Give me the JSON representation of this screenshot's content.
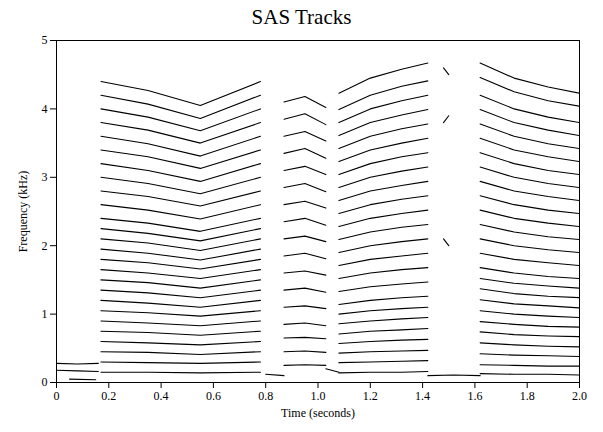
{
  "chart_data": {
    "type": "line",
    "title": "SAS Tracks",
    "x_label": "Time (seconds)",
    "y_label": "Frequency (kHz)",
    "color": "#000000",
    "grid": false,
    "xlim": [
      0,
      2
    ],
    "xticks": [
      0,
      0.2,
      0.4,
      0.6,
      0.8,
      {
        "value": 1,
        "label": "1.0"
      },
      1.2,
      1.4,
      1.6,
      1.8,
      {
        "value": 2,
        "label": "2.0"
      }
    ],
    "ylim": [
      0,
      5
    ],
    "yticks": [
      0,
      1,
      2,
      3,
      4,
      5
    ],
    "series": [
      {
        "x": [
          0,
          0.08,
          0.16
        ],
        "values": [
          0.28,
          0.27,
          0.28
        ]
      },
      {
        "x": [
          0,
          0.08,
          0.16
        ],
        "values": [
          0.18,
          0.17,
          0.16
        ]
      },
      {
        "x": [
          0.05,
          0.15
        ],
        "values": [
          0.05,
          0.04
        ]
      },
      {
        "x": [
          0.8,
          0.87
        ],
        "values": [
          0.12,
          0.1
        ]
      },
      {
        "x": [
          1.03,
          1.08
        ],
        "values": [
          0.2,
          0.15
        ]
      },
      {
        "x": [
          1.42,
          1.52,
          1.62
        ],
        "values": [
          0.1,
          0.11,
          0.1
        ]
      },
      {
        "x": [
          1.48,
          1.5
        ],
        "values": [
          4.6,
          4.5
        ]
      },
      {
        "x": [
          1.48,
          1.5
        ],
        "values": [
          3.8,
          3.9
        ]
      },
      {
        "x": [
          1.48,
          1.5
        ],
        "values": [
          2.1,
          2.0
        ]
      },
      {
        "x": [
          0.17,
          0.35,
          0.55,
          0.78
        ],
        "values": [
          0.15,
          0.15,
          0.14,
          0.15
        ]
      },
      {
        "x": [
          0.17,
          0.35,
          0.55,
          0.78
        ],
        "values": [
          0.3,
          0.29,
          0.28,
          0.3
        ]
      },
      {
        "x": [
          0.17,
          0.35,
          0.55,
          0.78
        ],
        "values": [
          0.45,
          0.44,
          0.41,
          0.45
        ]
      },
      {
        "x": [
          0.17,
          0.35,
          0.55,
          0.78
        ],
        "values": [
          0.6,
          0.58,
          0.55,
          0.6
        ]
      },
      {
        "x": [
          0.17,
          0.35,
          0.55,
          0.78
        ],
        "values": [
          0.75,
          0.73,
          0.69,
          0.75
        ]
      },
      {
        "x": [
          0.17,
          0.35,
          0.55,
          0.78
        ],
        "values": [
          0.9,
          0.87,
          0.83,
          0.9
        ]
      },
      {
        "x": [
          0.17,
          0.35,
          0.55,
          0.78
        ],
        "values": [
          1.05,
          1.02,
          0.97,
          1.05
        ]
      },
      {
        "x": [
          0.17,
          0.35,
          0.55,
          0.78
        ],
        "values": [
          1.2,
          1.16,
          1.1,
          1.2
        ]
      },
      {
        "x": [
          0.17,
          0.35,
          0.55,
          0.78
        ],
        "values": [
          1.35,
          1.31,
          1.24,
          1.35
        ]
      },
      {
        "x": [
          0.17,
          0.35,
          0.55,
          0.78
        ],
        "values": [
          1.5,
          1.46,
          1.38,
          1.5
        ]
      },
      {
        "x": [
          0.17,
          0.35,
          0.55,
          0.78
        ],
        "values": [
          1.65,
          1.6,
          1.52,
          1.65
        ]
      },
      {
        "x": [
          0.17,
          0.35,
          0.55,
          0.78
        ],
        "values": [
          1.8,
          1.75,
          1.66,
          1.8
        ]
      },
      {
        "x": [
          0.17,
          0.35,
          0.55,
          0.78
        ],
        "values": [
          1.95,
          1.89,
          1.79,
          1.95
        ]
      },
      {
        "x": [
          0.17,
          0.35,
          0.55,
          0.78
        ],
        "values": [
          2.1,
          2.04,
          1.93,
          2.1
        ]
      },
      {
        "x": [
          0.17,
          0.35,
          0.55,
          0.78
        ],
        "values": [
          2.25,
          2.18,
          2.07,
          2.25
        ]
      },
      {
        "x": [
          0.17,
          0.35,
          0.55,
          0.78
        ],
        "values": [
          2.4,
          2.33,
          2.21,
          2.4
        ]
      },
      {
        "x": [
          0.17,
          0.35,
          0.55,
          0.78
        ],
        "values": [
          2.6,
          2.52,
          2.39,
          2.6
        ]
      },
      {
        "x": [
          0.17,
          0.35,
          0.55,
          0.78
        ],
        "values": [
          2.8,
          2.72,
          2.58,
          2.8
        ]
      },
      {
        "x": [
          0.17,
          0.35,
          0.55,
          0.78
        ],
        "values": [
          3.0,
          2.91,
          2.76,
          3.0
        ]
      },
      {
        "x": [
          0.17,
          0.35,
          0.55,
          0.78
        ],
        "values": [
          3.2,
          3.1,
          2.94,
          3.2
        ]
      },
      {
        "x": [
          0.17,
          0.35,
          0.55,
          0.78
        ],
        "values": [
          3.4,
          3.3,
          3.13,
          3.4
        ]
      },
      {
        "x": [
          0.17,
          0.35,
          0.55,
          0.78
        ],
        "values": [
          3.6,
          3.49,
          3.31,
          3.6
        ]
      },
      {
        "x": [
          0.17,
          0.35,
          0.55,
          0.78
        ],
        "values": [
          3.8,
          3.69,
          3.5,
          3.8
        ]
      },
      {
        "x": [
          0.17,
          0.35,
          0.55,
          0.78
        ],
        "values": [
          4.0,
          3.88,
          3.68,
          4.0
        ]
      },
      {
        "x": [
          0.17,
          0.35,
          0.55,
          0.78
        ],
        "values": [
          4.2,
          4.07,
          3.86,
          4.2
        ]
      },
      {
        "x": [
          0.17,
          0.35,
          0.55,
          0.78
        ],
        "values": [
          4.4,
          4.27,
          4.05,
          4.4
        ]
      },
      {
        "x": [
          0.87,
          0.95,
          1.03
        ],
        "values": [
          0.25,
          0.26,
          0.25
        ]
      },
      {
        "x": [
          0.87,
          0.95,
          1.03
        ],
        "values": [
          0.45,
          0.46,
          0.44
        ]
      },
      {
        "x": [
          0.87,
          0.95,
          1.03
        ],
        "values": [
          0.65,
          0.66,
          0.64
        ]
      },
      {
        "x": [
          0.87,
          0.95,
          1.03
        ],
        "values": [
          0.85,
          0.87,
          0.83
        ]
      },
      {
        "x": [
          0.87,
          0.95,
          1.03
        ],
        "values": [
          1.1,
          1.12,
          1.08
        ]
      },
      {
        "x": [
          0.87,
          0.95,
          1.03
        ],
        "values": [
          1.35,
          1.38,
          1.32
        ]
      },
      {
        "x": [
          0.87,
          0.95,
          1.03
        ],
        "values": [
          1.6,
          1.63,
          1.57
        ]
      },
      {
        "x": [
          0.87,
          0.95,
          1.03
        ],
        "values": [
          1.85,
          1.89,
          1.81
        ]
      },
      {
        "x": [
          0.87,
          0.95,
          1.03
        ],
        "values": [
          2.1,
          2.14,
          2.06
        ]
      },
      {
        "x": [
          0.87,
          0.95,
          1.03
        ],
        "values": [
          2.35,
          2.4,
          2.3
        ]
      },
      {
        "x": [
          0.87,
          0.95,
          1.03
        ],
        "values": [
          2.6,
          2.65,
          2.55
        ]
      },
      {
        "x": [
          0.87,
          0.95,
          1.03
        ],
        "values": [
          2.85,
          2.91,
          2.79
        ]
      },
      {
        "x": [
          0.87,
          0.95,
          1.03
        ],
        "values": [
          3.1,
          3.16,
          3.04
        ]
      },
      {
        "x": [
          0.87,
          0.95,
          1.03
        ],
        "values": [
          3.35,
          3.42,
          3.28
        ]
      },
      {
        "x": [
          0.87,
          0.95,
          1.03
        ],
        "values": [
          3.6,
          3.67,
          3.53
        ]
      },
      {
        "x": [
          0.87,
          0.95,
          1.03
        ],
        "values": [
          3.85,
          3.93,
          3.77
        ]
      },
      {
        "x": [
          0.87,
          0.95,
          1.03
        ],
        "values": [
          4.1,
          4.18,
          4.02
        ]
      },
      {
        "x": [
          1.08,
          1.2,
          1.32,
          1.42
        ],
        "values": [
          0.14,
          0.15,
          0.15,
          0.16
        ]
      },
      {
        "x": [
          1.08,
          1.2,
          1.32,
          1.42
        ],
        "values": [
          0.29,
          0.3,
          0.31,
          0.32
        ]
      },
      {
        "x": [
          1.08,
          1.2,
          1.32,
          1.42
        ],
        "values": [
          0.43,
          0.45,
          0.46,
          0.47
        ]
      },
      {
        "x": [
          1.08,
          1.2,
          1.32,
          1.42
        ],
        "values": [
          0.57,
          0.6,
          0.62,
          0.63
        ]
      },
      {
        "x": [
          1.08,
          1.2,
          1.32,
          1.42
        ],
        "values": [
          0.71,
          0.75,
          0.77,
          0.79
        ]
      },
      {
        "x": [
          1.08,
          1.2,
          1.32,
          1.42
        ],
        "values": [
          0.86,
          0.9,
          0.93,
          0.95
        ]
      },
      {
        "x": [
          1.08,
          1.2,
          1.32,
          1.42
        ],
        "values": [
          1.0,
          1.05,
          1.08,
          1.1
        ]
      },
      {
        "x": [
          1.08,
          1.2,
          1.32,
          1.42
        ],
        "values": [
          1.14,
          1.2,
          1.24,
          1.26
        ]
      },
      {
        "x": [
          1.08,
          1.2,
          1.32,
          1.42
        ],
        "values": [
          1.33,
          1.4,
          1.44,
          1.47
        ]
      },
      {
        "x": [
          1.08,
          1.2,
          1.32,
          1.42
        ],
        "values": [
          1.52,
          1.6,
          1.65,
          1.68
        ]
      },
      {
        "x": [
          1.08,
          1.2,
          1.32,
          1.42
        ],
        "values": [
          1.71,
          1.8,
          1.85,
          1.89
        ]
      },
      {
        "x": [
          1.08,
          1.2,
          1.32,
          1.42
        ],
        "values": [
          1.9,
          2.0,
          2.06,
          2.1
        ]
      },
      {
        "x": [
          1.08,
          1.2,
          1.32,
          1.42
        ],
        "values": [
          2.09,
          2.2,
          2.27,
          2.31
        ]
      },
      {
        "x": [
          1.08,
          1.2,
          1.32,
          1.42
        ],
        "values": [
          2.28,
          2.4,
          2.47,
          2.52
        ]
      },
      {
        "x": [
          1.08,
          1.2,
          1.32,
          1.42
        ],
        "values": [
          2.47,
          2.6,
          2.68,
          2.73
        ]
      },
      {
        "x": [
          1.08,
          1.2,
          1.32,
          1.42
        ],
        "values": [
          2.66,
          2.8,
          2.88,
          2.94
        ]
      },
      {
        "x": [
          1.08,
          1.2,
          1.32,
          1.42
        ],
        "values": [
          2.85,
          3.0,
          3.09,
          3.15
        ]
      },
      {
        "x": [
          1.08,
          1.2,
          1.32,
          1.42
        ],
        "values": [
          3.04,
          3.2,
          3.3,
          3.36
        ]
      },
      {
        "x": [
          1.08,
          1.2,
          1.32,
          1.42
        ],
        "values": [
          3.23,
          3.4,
          3.5,
          3.57
        ]
      },
      {
        "x": [
          1.08,
          1.2,
          1.32,
          1.42
        ],
        "values": [
          3.42,
          3.6,
          3.71,
          3.78
        ]
      },
      {
        "x": [
          1.08,
          1.2,
          1.32,
          1.42
        ],
        "values": [
          3.61,
          3.8,
          3.91,
          3.99
        ]
      },
      {
        "x": [
          1.08,
          1.2,
          1.32,
          1.42
        ],
        "values": [
          3.8,
          4.0,
          4.12,
          4.2
        ]
      },
      {
        "x": [
          1.08,
          1.2,
          1.32,
          1.42
        ],
        "values": [
          3.99,
          4.2,
          4.33,
          4.41
        ]
      },
      {
        "x": [
          1.08,
          1.2,
          1.32,
          1.42
        ],
        "values": [
          4.23,
          4.45,
          4.58,
          4.67
        ]
      },
      {
        "x": [
          1.62,
          1.75,
          1.88,
          2.0
        ],
        "values": [
          0.13,
          0.12,
          0.12,
          0.11
        ]
      },
      {
        "x": [
          1.62,
          1.75,
          1.88,
          2.0
        ],
        "values": [
          0.26,
          0.25,
          0.24,
          0.24
        ]
      },
      {
        "x": [
          1.62,
          1.75,
          1.88,
          2.0
        ],
        "values": [
          0.42,
          0.4,
          0.39,
          0.38
        ]
      },
      {
        "x": [
          1.62,
          1.75,
          1.88,
          2.0
        ],
        "values": [
          0.58,
          0.55,
          0.53,
          0.52
        ]
      },
      {
        "x": [
          1.62,
          1.75,
          1.88,
          2.0
        ],
        "values": [
          0.74,
          0.7,
          0.68,
          0.67
        ]
      },
      {
        "x": [
          1.62,
          1.75,
          1.88,
          2.0
        ],
        "values": [
          0.89,
          0.85,
          0.82,
          0.81
        ]
      },
      {
        "x": [
          1.62,
          1.75,
          1.88,
          2.0
        ],
        "values": [
          1.05,
          1.0,
          0.97,
          0.95
        ]
      },
      {
        "x": [
          1.62,
          1.75,
          1.88,
          2.0
        ],
        "values": [
          1.21,
          1.15,
          1.12,
          1.09
        ]
      },
      {
        "x": [
          1.62,
          1.75,
          1.88,
          2.0
        ],
        "values": [
          1.37,
          1.3,
          1.26,
          1.24
        ]
      },
      {
        "x": [
          1.62,
          1.75,
          1.88,
          2.0
        ],
        "values": [
          1.52,
          1.45,
          1.41,
          1.38
        ]
      },
      {
        "x": [
          1.62,
          1.75,
          1.88,
          2.0
        ],
        "values": [
          1.68,
          1.6,
          1.55,
          1.52
        ]
      },
      {
        "x": [
          1.62,
          1.75,
          1.88,
          2.0
        ],
        "values": [
          1.89,
          1.8,
          1.75,
          1.71
        ]
      },
      {
        "x": [
          1.62,
          1.75,
          1.88,
          2.0
        ],
        "values": [
          2.1,
          2.0,
          1.94,
          1.9
        ]
      },
      {
        "x": [
          1.62,
          1.75,
          1.88,
          2.0
        ],
        "values": [
          2.31,
          2.2,
          2.13,
          2.09
        ]
      },
      {
        "x": [
          1.62,
          1.75,
          1.88,
          2.0
        ],
        "values": [
          2.52,
          2.4,
          2.33,
          2.28
        ]
      },
      {
        "x": [
          1.62,
          1.75,
          1.88,
          2.0
        ],
        "values": [
          2.73,
          2.6,
          2.52,
          2.47
        ]
      },
      {
        "x": [
          1.62,
          1.75,
          1.88,
          2.0
        ],
        "values": [
          2.94,
          2.8,
          2.72,
          2.66
        ]
      },
      {
        "x": [
          1.62,
          1.75,
          1.88,
          2.0
        ],
        "values": [
          3.15,
          3.0,
          2.91,
          2.85
        ]
      },
      {
        "x": [
          1.62,
          1.75,
          1.88,
          2.0
        ],
        "values": [
          3.36,
          3.2,
          3.1,
          3.04
        ]
      },
      {
        "x": [
          1.62,
          1.75,
          1.88,
          2.0
        ],
        "values": [
          3.57,
          3.4,
          3.3,
          3.23
        ]
      },
      {
        "x": [
          1.62,
          1.75,
          1.88,
          2.0
        ],
        "values": [
          3.78,
          3.6,
          3.49,
          3.42
        ]
      },
      {
        "x": [
          1.62,
          1.75,
          1.88,
          2.0
        ],
        "values": [
          3.99,
          3.8,
          3.69,
          3.61
        ]
      },
      {
        "x": [
          1.62,
          1.75,
          1.88,
          2.0
        ],
        "values": [
          4.2,
          4.0,
          3.88,
          3.8
        ]
      },
      {
        "x": [
          1.62,
          1.75,
          1.88,
          2.0
        ],
        "values": [
          4.46,
          4.25,
          4.12,
          4.04
        ]
      },
      {
        "x": [
          1.62,
          1.75,
          1.88,
          2.0
        ],
        "values": [
          4.67,
          4.45,
          4.32,
          4.23
        ]
      }
    ]
  }
}
